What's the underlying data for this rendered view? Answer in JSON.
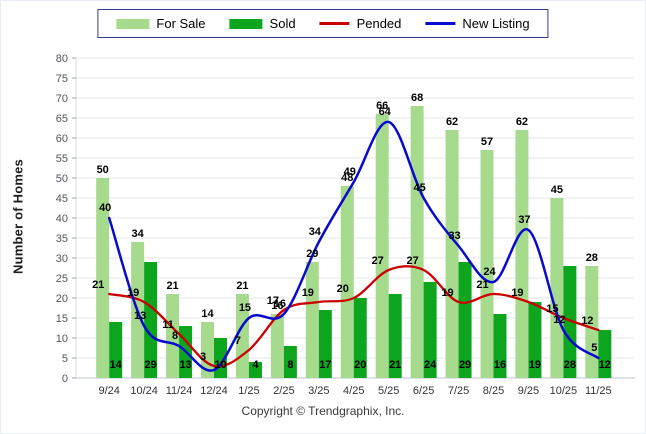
{
  "legend": {
    "items": [
      {
        "label": "For Sale",
        "swatch": "bar",
        "color": "#a6db8e"
      },
      {
        "label": "Sold",
        "swatch": "bar",
        "color": "#0da41e"
      },
      {
        "label": "Pended",
        "swatch": "line",
        "color": "#cc0000"
      },
      {
        "label": "New Listing",
        "swatch": "line",
        "color": "#0a0acf"
      }
    ]
  },
  "footer": "Copyright © Trendgraphix, Inc.",
  "chart_data": {
    "type": "bar",
    "subtype": "grouped bars with smooth overlay lines",
    "title": "",
    "xlabel": "",
    "ylabel": "Number of Homes",
    "ylim": [
      0,
      80
    ],
    "yticks": [
      0,
      5,
      10,
      15,
      20,
      25,
      30,
      35,
      40,
      45,
      50,
      55,
      60,
      65,
      70,
      75,
      80
    ],
    "grid": true,
    "legend_position": "top-center",
    "categories": [
      "9/24",
      "10/24",
      "11/24",
      "12/24",
      "1/25",
      "2/25",
      "3/25",
      "4/25",
      "5/25",
      "6/25",
      "7/25",
      "8/25",
      "9/25",
      "10/25",
      "11/25"
    ],
    "series": [
      {
        "name": "For Sale",
        "type": "bar",
        "color": "#a6db8e",
        "values": [
          50,
          34,
          21,
          14,
          21,
          16,
          29,
          48,
          66,
          68,
          62,
          57,
          62,
          45,
          28
        ],
        "labels": [
          "50",
          "34",
          "21",
          "14",
          "21",
          "16",
          "29",
          "48",
          "66",
          "68",
          "62",
          "57",
          "62",
          "45",
          "28"
        ]
      },
      {
        "name": "Sold",
        "type": "bar",
        "color": "#0da41e",
        "values": [
          14,
          29,
          13,
          10,
          4,
          8,
          17,
          20,
          21,
          24,
          29,
          16,
          19,
          28,
          12
        ],
        "labels": [
          "14",
          "29",
          "13",
          "10",
          "4",
          "8",
          "17",
          "20",
          "21",
          "24",
          "29",
          "16",
          "19",
          "28",
          "12"
        ]
      },
      {
        "name": "Pended",
        "type": "line",
        "color": "#cc0000",
        "values": [
          21,
          19,
          11,
          3,
          7,
          17,
          19,
          20,
          27,
          27,
          19,
          21,
          19,
          15,
          12
        ],
        "labels": [
          "21",
          "19",
          "11",
          "3",
          "7",
          "17",
          "19",
          "20",
          "27",
          "27",
          "19",
          "21",
          "19",
          "15",
          "12"
        ]
      },
      {
        "name": "New Listing",
        "type": "line",
        "color": "#0a0acf",
        "values": [
          40,
          13,
          8,
          2,
          15,
          16,
          34,
          49,
          64,
          45,
          33,
          24,
          37,
          12,
          5
        ],
        "labels": [
          "40",
          "13",
          "8",
          "",
          "15",
          "16",
          "34",
          "49",
          "64",
          "45",
          "33",
          "24",
          "37",
          "12",
          "5"
        ]
      }
    ]
  }
}
